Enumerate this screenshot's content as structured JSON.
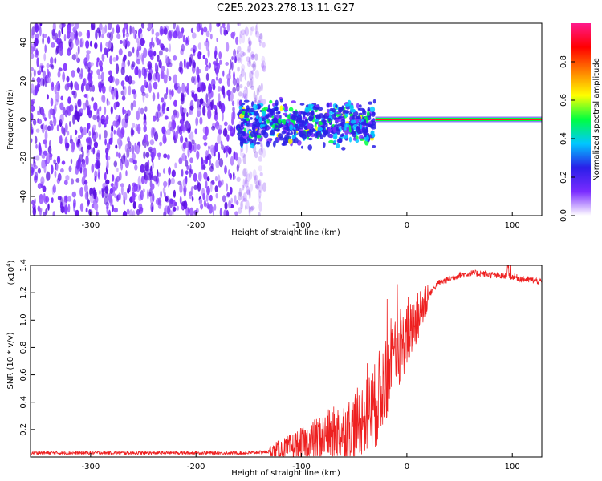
{
  "figure": {
    "title": "C2E5.2023.278.13.11.G27"
  },
  "colors": {
    "ridge": "#ff2020",
    "snr_line": "#ee2020",
    "noise": "#7a2cff",
    "axis": "#000000"
  },
  "chart_data": [
    {
      "type": "heatmap",
      "xlabel": "Height of straight line (km)",
      "ylabel": "Frequency (Hz)",
      "xlim": [
        -357,
        128
      ],
      "ylim": [
        -50,
        50
      ],
      "xticks": [
        -300,
        -200,
        -100,
        0,
        100
      ],
      "xtick_labels": [
        "-300",
        "-200",
        "-100",
        "0",
        "100"
      ],
      "yticks": [
        -40,
        -20,
        0,
        20,
        40
      ],
      "ytick_labels": [
        "-40",
        "-20",
        "0",
        "20",
        "40"
      ],
      "colorbar": {
        "label": "Normalized spectral amplitude",
        "range": [
          0.0,
          1.0
        ],
        "ticks": [
          0.0,
          0.2,
          0.4,
          0.6,
          0.8
        ],
        "tick_labels": [
          "0.0",
          "0.2",
          "0.4",
          "0.6",
          "0.8"
        ],
        "colormap": [
          "#ffffff",
          "#7a2cff",
          "#2a1ee8",
          "#00c8ff",
          "#00ff40",
          "#ffff00",
          "#ff8000",
          "#ff0000",
          "#ff1a8c"
        ]
      },
      "regions": [
        {
          "name": "noise",
          "x_range": [
            -357,
            -160
          ],
          "freq_range": [
            -50,
            50
          ],
          "amplitude": 0.08
        },
        {
          "name": "transition",
          "x_range": [
            -160,
            -30
          ],
          "freq_range": [
            -15,
            12
          ],
          "amplitude": 0.3
        },
        {
          "name": "carrier",
          "x_range": [
            -30,
            128
          ],
          "freq": 0,
          "amplitude": 0.9
        }
      ]
    },
    {
      "type": "line",
      "xlabel": "Height of straight line (km)",
      "ylabel": "SNR (10 * v/v)",
      "scale_note": "(x10",
      "scale_exp": "4",
      "scale_close": ")",
      "xlim": [
        -357,
        128
      ],
      "ylim": [
        0,
        1.4
      ],
      "xticks": [
        -300,
        -200,
        -100,
        0,
        100
      ],
      "xtick_labels": [
        "-300",
        "-200",
        "-100",
        "0",
        "100"
      ],
      "yticks": [
        0.2,
        0.4,
        0.6,
        0.8,
        1.0,
        1.2,
        1.4
      ],
      "ytick_labels": [
        "0.2",
        "0.4",
        "0.6",
        "0.8",
        "1.0",
        "1.2",
        "1.4"
      ],
      "series": [
        {
          "x": [
            -357,
            -300,
            -200,
            -150,
            -130,
            -115,
            -100,
            -85,
            -70,
            -55,
            -45,
            -35,
            -28,
            -22,
            -18,
            -14,
            -10,
            -5,
            0,
            5,
            10,
            15,
            20,
            25,
            30,
            40,
            50,
            60,
            70,
            80,
            90,
            100,
            110,
            120,
            128
          ],
          "values": [
            0.03,
            0.03,
            0.03,
            0.03,
            0.04,
            0.06,
            0.09,
            0.13,
            0.17,
            0.2,
            0.26,
            0.34,
            0.42,
            0.52,
            0.6,
            0.67,
            0.74,
            0.8,
            0.88,
            0.95,
            1.02,
            1.1,
            1.17,
            1.23,
            1.27,
            1.3,
            1.33,
            1.34,
            1.34,
            1.33,
            1.32,
            1.32,
            1.3,
            1.29,
            1.28
          ]
        }
      ]
    }
  ]
}
